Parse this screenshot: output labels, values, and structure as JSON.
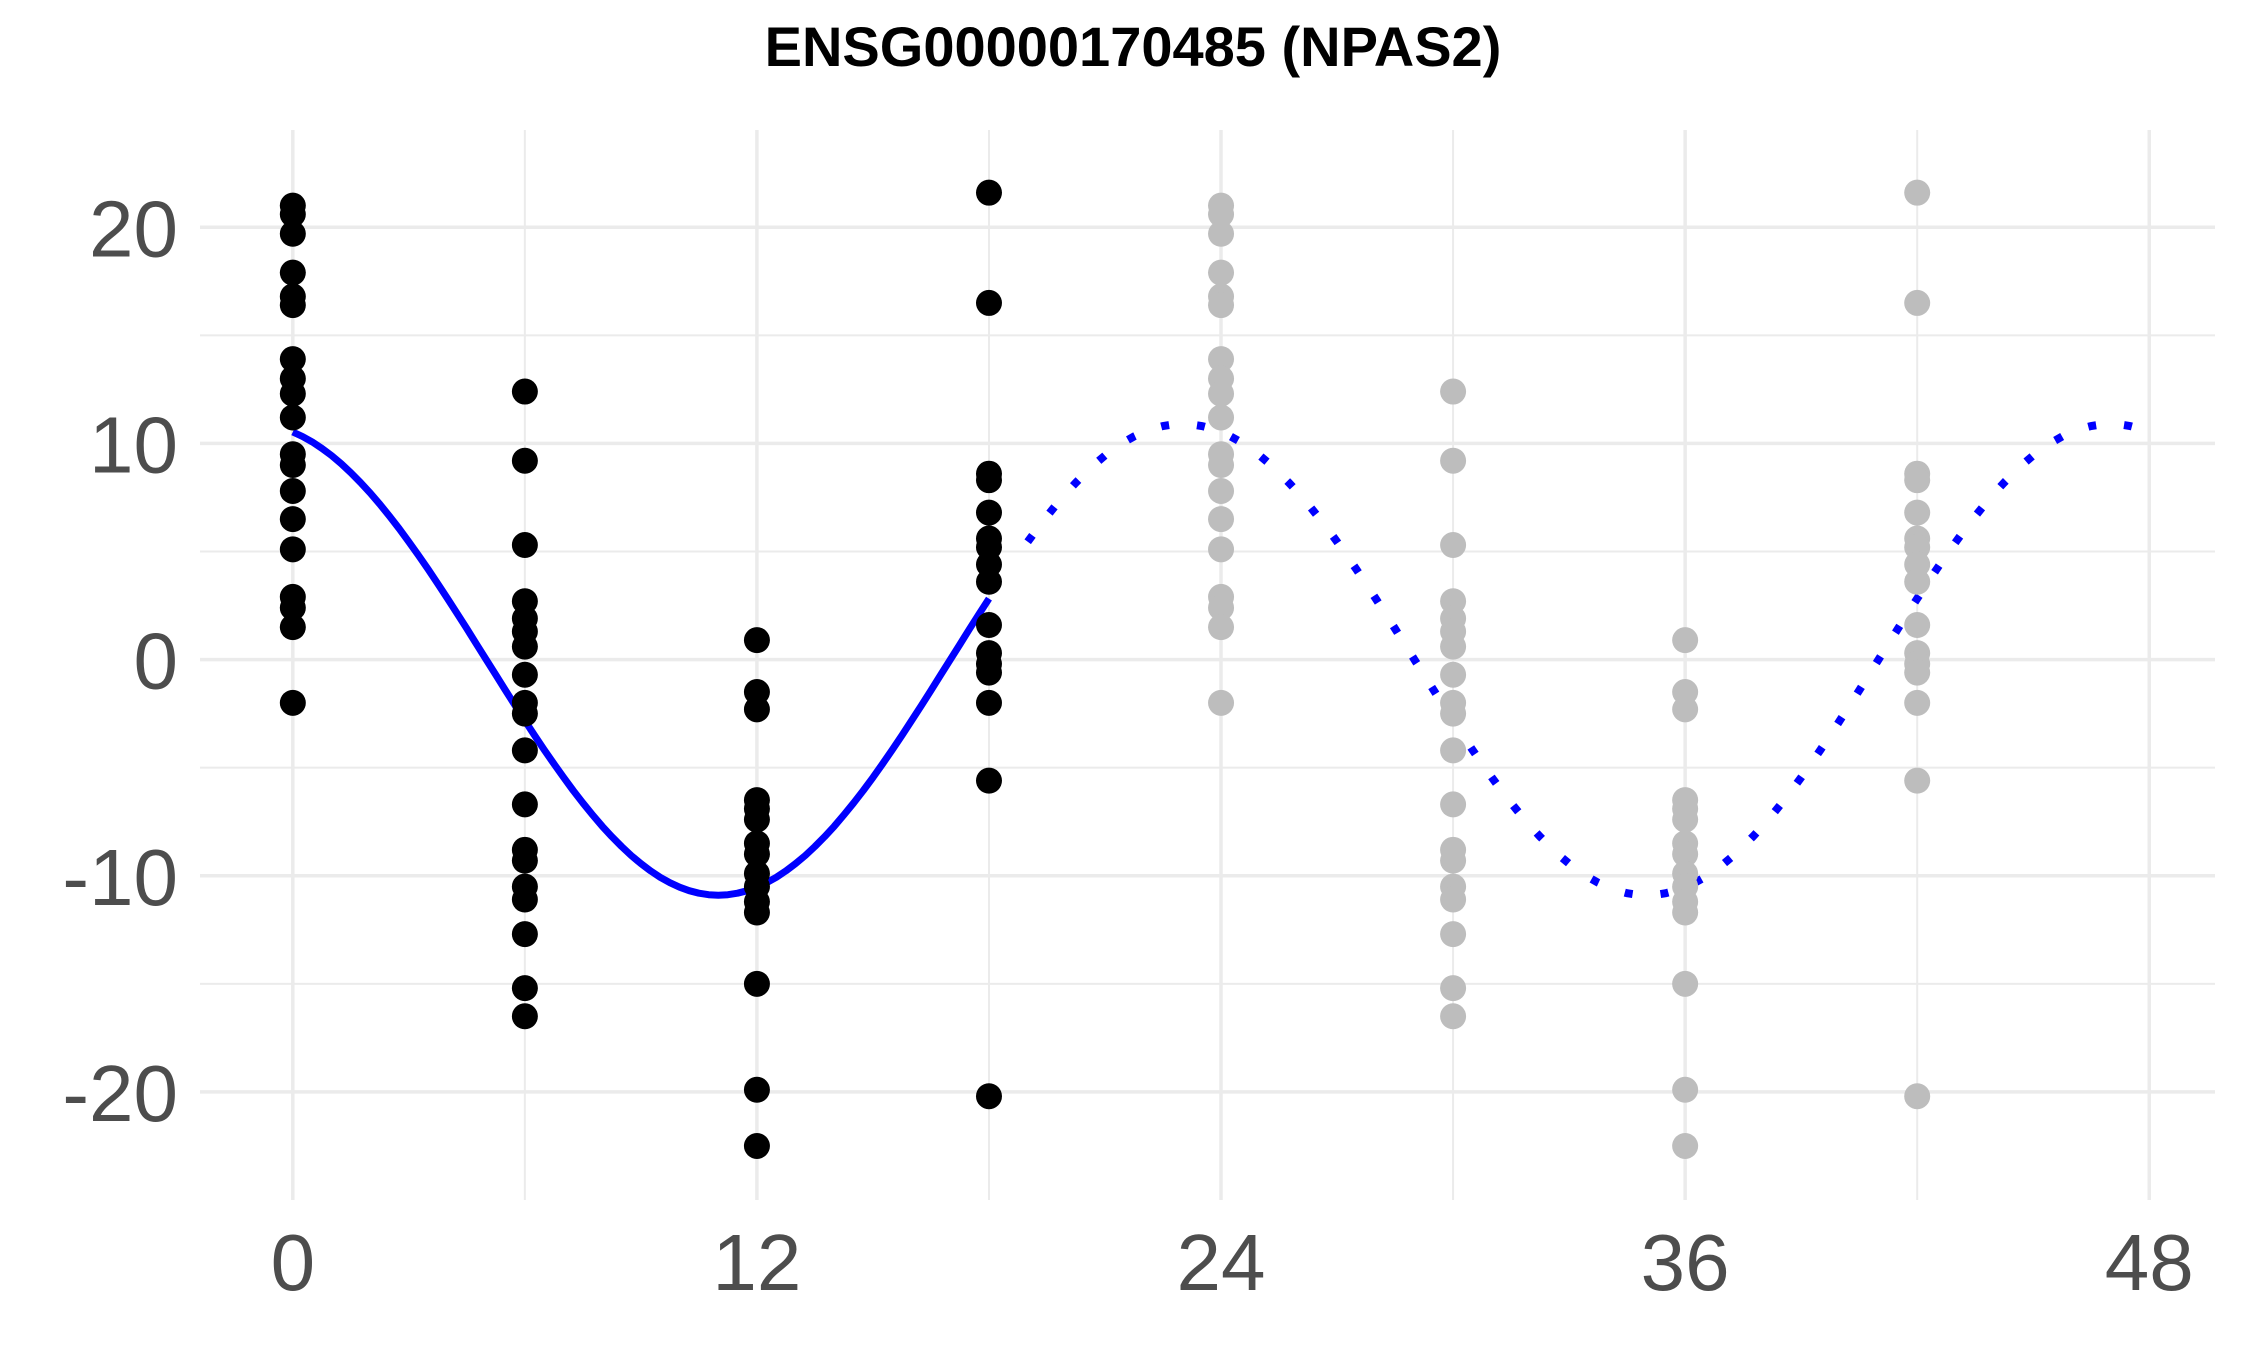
{
  "chart_data": {
    "type": "scatter",
    "title": "ENSG00000170485 (NPAS2)",
    "xlabel": "",
    "ylabel": "",
    "xlim": [
      -2.4,
      49.7
    ],
    "ylim": [
      -25,
      24.5
    ],
    "x_ticks": [
      0,
      12,
      24,
      36,
      48
    ],
    "y_ticks": [
      -20,
      -10,
      0,
      10,
      20
    ],
    "grid": true,
    "legend": "none",
    "colors": {
      "observed": "#000000",
      "repeated": "#bdbdbd",
      "fit": "#0000ff",
      "grid": "#ebebeb",
      "tick_text": "#4d4d4d"
    },
    "points": [
      {
        "x": 0,
        "values": [
          21.0,
          20.6,
          19.7,
          17.9,
          16.8,
          16.4,
          13.9,
          13.0,
          12.3,
          11.2,
          9.5,
          9.0,
          7.8,
          6.5,
          5.1,
          2.9,
          2.4,
          1.5,
          -2.0
        ]
      },
      {
        "x": 6,
        "values": [
          12.4,
          9.2,
          5.3,
          2.7,
          1.9,
          1.3,
          0.6,
          -0.7,
          -2.0,
          -2.5,
          -4.2,
          -6.7,
          -8.8,
          -9.3,
          -10.5,
          -11.1,
          -12.7,
          -15.2,
          -16.5
        ]
      },
      {
        "x": 12,
        "values": [
          0.9,
          -1.5,
          -2.3,
          -6.5,
          -6.9,
          -7.4,
          -8.5,
          -9.0,
          -9.9,
          -10.5,
          -11.2,
          -11.7,
          -15.0,
          -19.9,
          -22.5
        ]
      },
      {
        "x": 18,
        "values": [
          21.6,
          16.5,
          8.6,
          8.3,
          6.8,
          5.6,
          5.2,
          4.4,
          3.6,
          1.6,
          0.3,
          -0.2,
          -0.6,
          -2.0,
          -5.6,
          -20.2
        ]
      }
    ],
    "repeat_period": 24,
    "fit": {
      "type": "cosinor",
      "mesor": 0.0,
      "amplitude": 10.9,
      "acrophase_hours": 23.0,
      "period_hours": 24,
      "solid_range": [
        0,
        18
      ],
      "dotted_range": [
        19,
        48
      ]
    }
  }
}
